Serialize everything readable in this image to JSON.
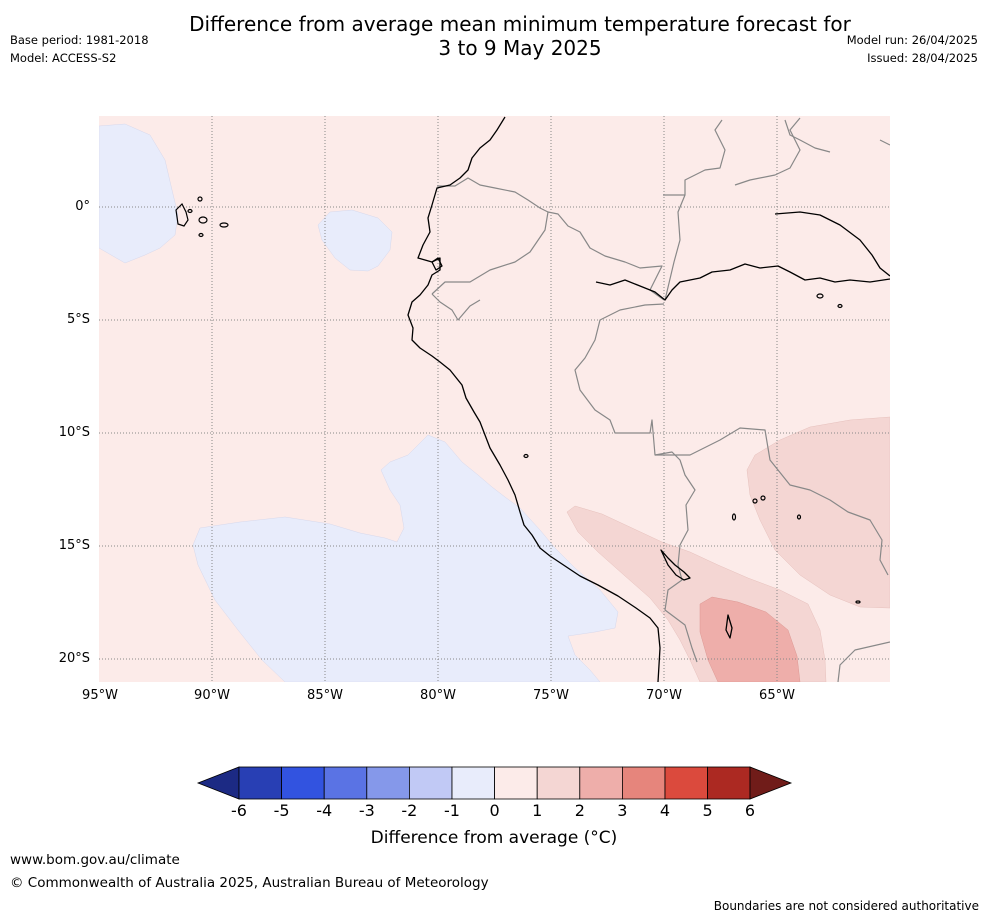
{
  "header": {
    "title_line1": "Difference from average mean minimum temperature forecast for",
    "title_line2": "3 to 9 May 2025",
    "base_period": "Base period: 1981-2018",
    "model": "Model: ACCESS-S2",
    "model_run": "Model run: 26/04/2025",
    "issued": "Issued: 28/04/2025"
  },
  "map": {
    "lat_labels": [
      "0°",
      "5°S",
      "10°S",
      "15°S",
      "20°S"
    ],
    "lon_labels": [
      "95°W",
      "90°W",
      "85°W",
      "80°W",
      "75°W",
      "70°W",
      "65°W"
    ],
    "colors": {
      "ocean_background": "#fcebe9",
      "cool_anomaly": "#e8ecfb",
      "warm_1_2": "#f4d6d3",
      "warm_2_3": "#eeaeaa",
      "coastline": "#000000",
      "border": "#888888",
      "grid": "#888888"
    }
  },
  "colorbar": {
    "ticks": [
      "-6",
      "-5",
      "-4",
      "-3",
      "-2",
      "-1",
      "0",
      "1",
      "2",
      "3",
      "4",
      "5",
      "6"
    ],
    "colors": [
      "#1c2a84",
      "#283fb4",
      "#3253e0",
      "#5a73e4",
      "#8598ea",
      "#c1c9f5",
      "#e8ecfb",
      "#fcebe9",
      "#f4d6d3",
      "#eeaeaa",
      "#e6857c",
      "#db4a3d",
      "#ac2922",
      "#701c19"
    ],
    "label": "Difference from average (°C)"
  },
  "footer": {
    "website": "www.bom.gov.au/climate",
    "copyright": "© Commonwealth of Australia 2025, Australian Bureau of Meteorology",
    "disclaimer": "Boundaries are not considered authoritative"
  }
}
